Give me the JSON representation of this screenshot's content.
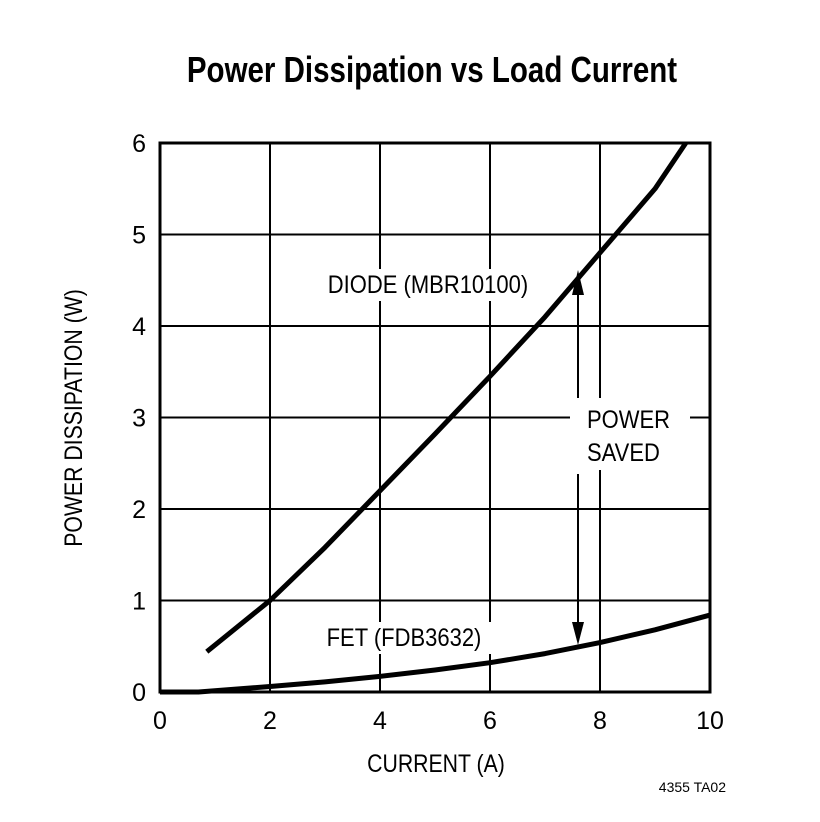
{
  "chart_data": {
    "type": "line",
    "title": "Power Dissipation vs Load Current",
    "xlabel": "CURRENT (A)",
    "ylabel": "POWER DISSIPATION (W)",
    "xlim": [
      0,
      10
    ],
    "ylim": [
      0,
      6
    ],
    "xticks": [
      "0",
      "2",
      "4",
      "6",
      "8",
      "10"
    ],
    "yticks": [
      "0",
      "1",
      "2",
      "3",
      "4",
      "5",
      "6"
    ],
    "grid": true,
    "series": [
      {
        "name": "DIODE (MBR10100)",
        "x": [
          0.85,
          2,
          3,
          4,
          5,
          6,
          7,
          8,
          9,
          9.56
        ],
        "y": [
          0.44,
          1.0,
          1.58,
          2.2,
          2.82,
          3.45,
          4.1,
          4.8,
          5.5,
          6.0
        ]
      },
      {
        "name": "FET (FDB3632)",
        "x": [
          0,
          0.7,
          2,
          3,
          4,
          5,
          6,
          7,
          8,
          9,
          10
        ],
        "y": [
          0,
          0,
          0.06,
          0.11,
          0.17,
          0.24,
          0.32,
          0.42,
          0.54,
          0.68,
          0.84
        ]
      }
    ],
    "annotations": [
      {
        "text": "POWER",
        "x": 7.6
      },
      {
        "text": "SAVED",
        "x": 7.6
      }
    ],
    "footnote": "4355 TA02"
  }
}
